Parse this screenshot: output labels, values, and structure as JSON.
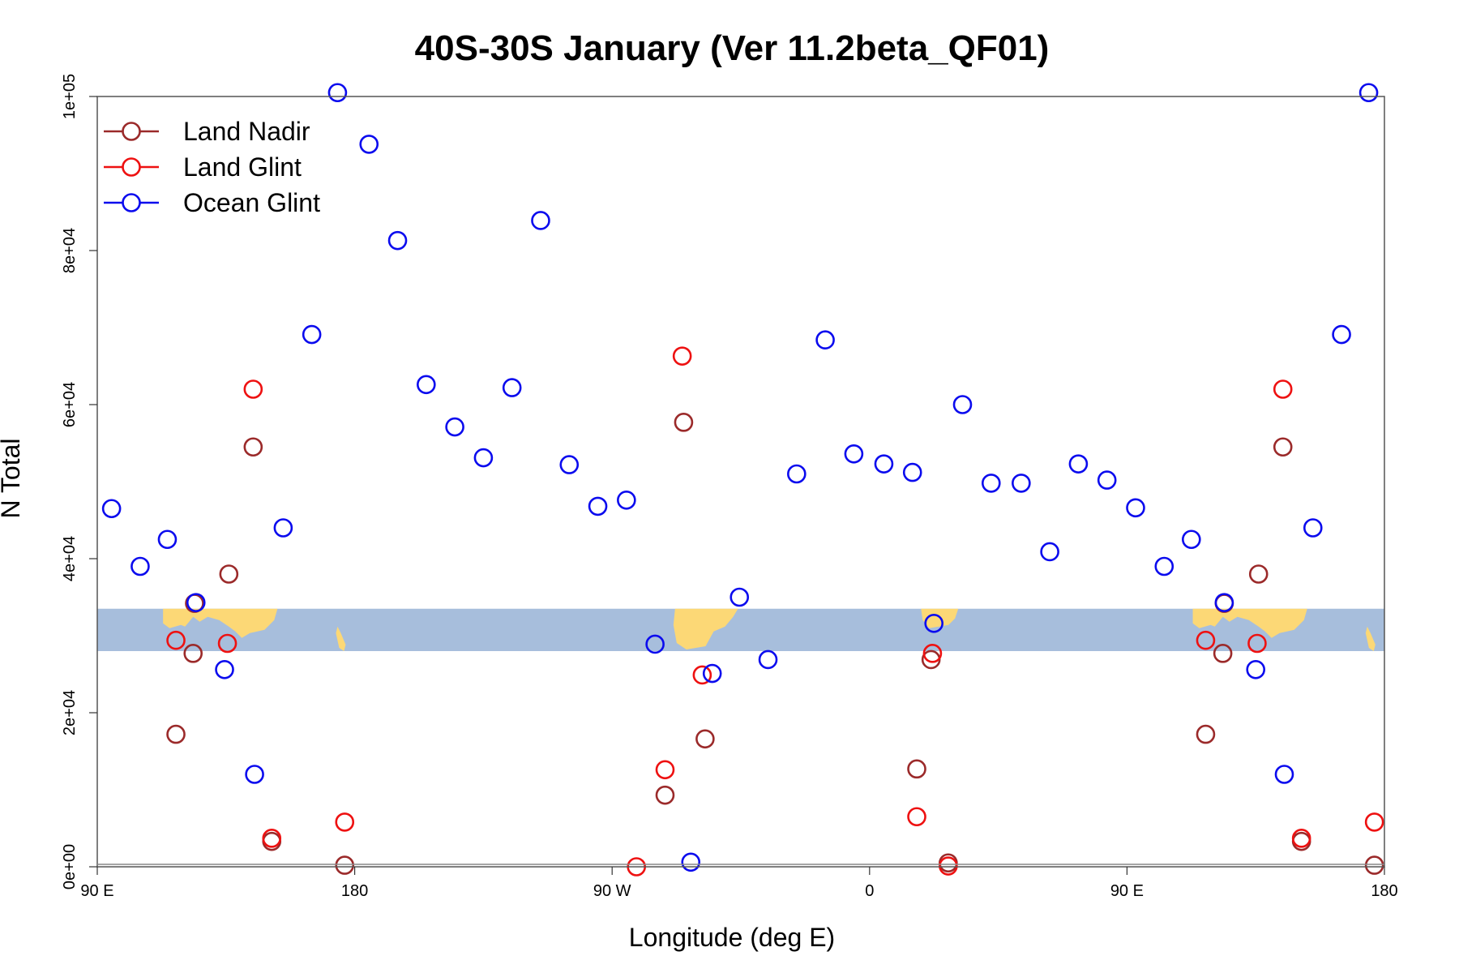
{
  "chart_data": {
    "type": "scatter",
    "title": "40S-30S January (Ver 11.2beta_QF01)",
    "xlabel": "Longitude (deg E)",
    "ylabel": "N Total",
    "xlim": [
      90,
      540
    ],
    "ylim": [
      0,
      100000
    ],
    "x_ticks": [
      {
        "value": 90,
        "label": "90 E"
      },
      {
        "value": 180,
        "label": "180"
      },
      {
        "value": 270,
        "label": "90 W"
      },
      {
        "value": 360,
        "label": "0"
      },
      {
        "value": 450,
        "label": "90 E"
      },
      {
        "value": 540,
        "label": "180"
      }
    ],
    "y_ticks": [
      {
        "value": 0,
        "label": "0e+00"
      },
      {
        "value": 20000,
        "label": "2e+04"
      },
      {
        "value": 40000,
        "label": "4e+04"
      },
      {
        "value": 60000,
        "label": "6e+04"
      },
      {
        "value": 80000,
        "label": "8e+04"
      },
      {
        "value": 100000,
        "label": "1e+05"
      }
    ],
    "map_strip": {
      "y_range": [
        28000,
        33500
      ],
      "ocean_color": "#a7bedc",
      "land_color": "#fcd876"
    },
    "legend": {
      "position": "top-left"
    },
    "series": [
      {
        "name": "Land Nadir",
        "color": "#9b2a2a",
        "points": [
          [
            117.5,
            17200
          ],
          [
            123.5,
            27700
          ],
          [
            124,
            34200
          ],
          [
            136,
            38000
          ],
          [
            144.5,
            54500
          ],
          [
            151,
            3300
          ],
          [
            176.5,
            200
          ],
          [
            288.5,
            9300
          ],
          [
            295,
            57700
          ],
          [
            302.5,
            16600
          ],
          [
            376.5,
            12700
          ],
          [
            381.5,
            26900
          ],
          [
            387.5,
            500
          ],
          [
            477.5,
            17200
          ],
          [
            483.5,
            27700
          ],
          [
            484,
            34200
          ],
          [
            496,
            38000
          ],
          [
            504.5,
            54500
          ],
          [
            511,
            3300
          ],
          [
            536.5,
            200
          ]
        ]
      },
      {
        "name": "Land Glint",
        "color": "#ee1111",
        "points": [
          [
            117.5,
            29400
          ],
          [
            135.5,
            29000
          ],
          [
            144.5,
            62000
          ],
          [
            151,
            3700
          ],
          [
            176.5,
            5800
          ],
          [
            278.5,
            0
          ],
          [
            288.5,
            12600
          ],
          [
            294.5,
            66300
          ],
          [
            301.5,
            24900
          ],
          [
            376.5,
            6500
          ],
          [
            382,
            27700
          ],
          [
            387.5,
            100
          ],
          [
            477.5,
            29400
          ],
          [
            495.5,
            29000
          ],
          [
            504.5,
            62000
          ],
          [
            511,
            3700
          ],
          [
            536.5,
            5800
          ]
        ]
      },
      {
        "name": "Ocean Glint",
        "color": "#0b0bee",
        "points": [
          [
            95,
            46500
          ],
          [
            105,
            39000
          ],
          [
            114.5,
            42500
          ],
          [
            124.5,
            34300
          ],
          [
            134.5,
            25600
          ],
          [
            145,
            12000
          ],
          [
            155,
            44000
          ],
          [
            165,
            69100
          ],
          [
            174,
            100500
          ],
          [
            185,
            93800
          ],
          [
            195,
            81300
          ],
          [
            205,
            62600
          ],
          [
            215,
            57100
          ],
          [
            225,
            53100
          ],
          [
            235,
            62200
          ],
          [
            245,
            83900
          ],
          [
            255,
            52200
          ],
          [
            265,
            46800
          ],
          [
            275,
            47600
          ],
          [
            285,
            28900
          ],
          [
            297.5,
            600
          ],
          [
            305,
            25100
          ],
          [
            314.5,
            35000
          ],
          [
            324.5,
            26900
          ],
          [
            334.5,
            51000
          ],
          [
            344.5,
            68400
          ],
          [
            354.5,
            53600
          ],
          [
            365,
            52300
          ],
          [
            375,
            51200
          ],
          [
            382.5,
            31600
          ],
          [
            392.5,
            60000
          ],
          [
            402.5,
            49800
          ],
          [
            413,
            49800
          ],
          [
            423,
            40900
          ],
          [
            433,
            52300
          ],
          [
            443,
            50200
          ],
          [
            453,
            46600
          ],
          [
            463,
            39000
          ],
          [
            472.5,
            42500
          ],
          [
            484,
            34300
          ],
          [
            495,
            25600
          ],
          [
            505,
            12000
          ],
          [
            515,
            44000
          ],
          [
            525,
            69100
          ],
          [
            534.5,
            100500
          ]
        ]
      }
    ]
  }
}
